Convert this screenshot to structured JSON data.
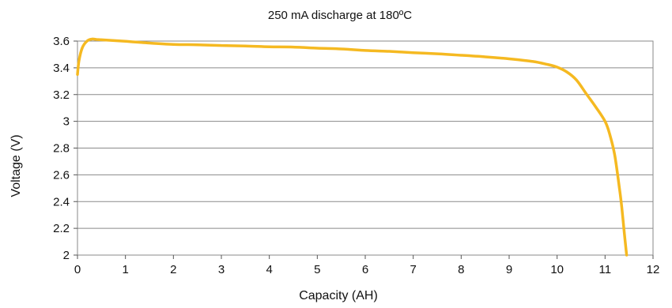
{
  "chart_data": {
    "type": "line",
    "title": "250 mA discharge at 180ºC",
    "xlabel": "Capacity (AH)",
    "ylabel": "Voltage (V)",
    "xlim": [
      0,
      12
    ],
    "ylim": [
      2,
      3.6
    ],
    "xticks": [
      0,
      1,
      2,
      3,
      4,
      5,
      6,
      7,
      8,
      9,
      10,
      11,
      12
    ],
    "yticks": [
      {
        "value": 2.0,
        "label": "2"
      },
      {
        "value": 2.2,
        "label": "2.2"
      },
      {
        "value": 2.4,
        "label": "2.4"
      },
      {
        "value": 2.6,
        "label": "2.6"
      },
      {
        "value": 2.8,
        "label": "2.8"
      },
      {
        "value": 3.0,
        "label": "3"
      },
      {
        "value": 3.2,
        "label": "3.2"
      },
      {
        "value": 3.4,
        "label": "3.4"
      },
      {
        "value": 3.6,
        "label": "3.6"
      }
    ],
    "grid": "horizontal",
    "legend": "none",
    "series": [
      {
        "color": "#F5B921",
        "x": [
          0.0,
          0.03,
          0.1,
          0.2,
          0.3,
          0.4,
          0.6,
          1.0,
          1.5,
          2.0,
          2.5,
          3.0,
          3.5,
          4.0,
          4.5,
          5.0,
          5.5,
          6.0,
          6.5,
          7.0,
          7.5,
          8.0,
          8.5,
          9.0,
          9.5,
          9.8,
          10.0,
          10.2,
          10.4,
          10.6,
          10.8,
          11.0,
          11.1,
          11.2,
          11.3,
          11.35,
          11.4,
          11.45
        ],
        "y": [
          3.35,
          3.45,
          3.55,
          3.6,
          3.615,
          3.612,
          3.607,
          3.598,
          3.585,
          3.575,
          3.572,
          3.567,
          3.563,
          3.557,
          3.555,
          3.547,
          3.541,
          3.53,
          3.523,
          3.513,
          3.505,
          3.494,
          3.482,
          3.467,
          3.447,
          3.425,
          3.405,
          3.37,
          3.31,
          3.21,
          3.11,
          3.0,
          2.9,
          2.75,
          2.5,
          2.35,
          2.17,
          2.0
        ]
      }
    ]
  }
}
